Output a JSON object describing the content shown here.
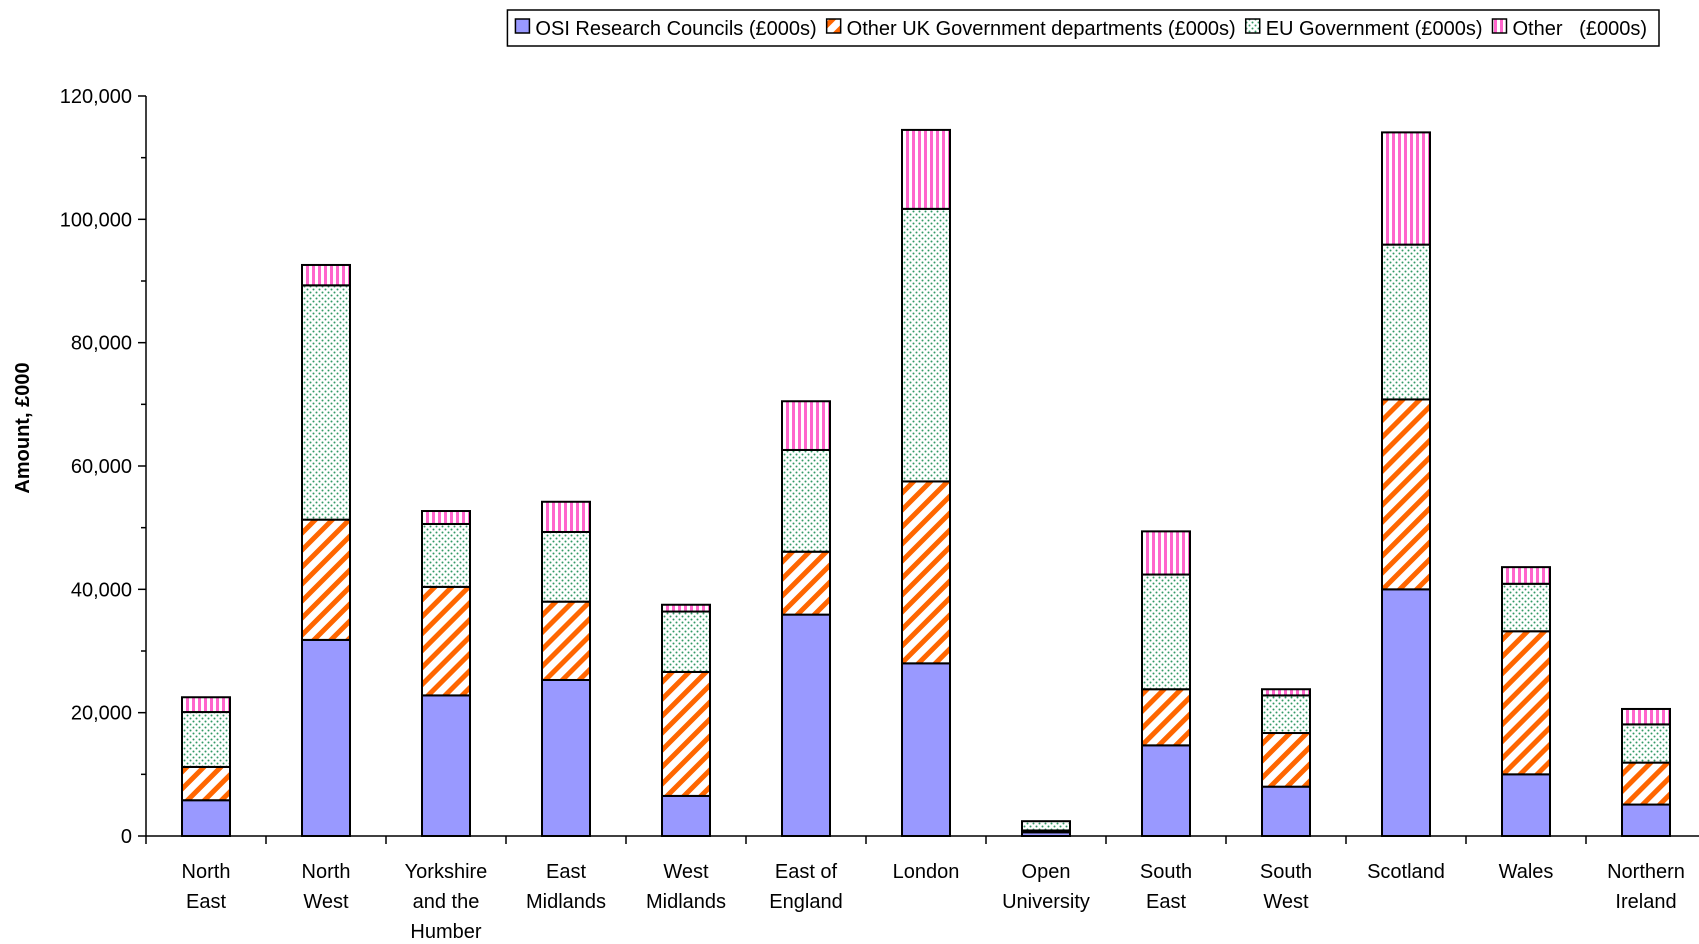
{
  "chart_data": {
    "type": "bar",
    "stacked": true,
    "categories": [
      [
        "North",
        "East"
      ],
      [
        "North",
        "West"
      ],
      [
        "Yorkshire",
        "and the",
        "Humber"
      ],
      [
        "East",
        "Midlands"
      ],
      [
        "West",
        "Midlands"
      ],
      [
        "East of",
        "England"
      ],
      [
        "London"
      ],
      [
        "Open",
        "University"
      ],
      [
        "South",
        "East"
      ],
      [
        "South",
        "West"
      ],
      [
        "Scotland"
      ],
      [
        "Wales"
      ],
      [
        "Northern",
        "Ireland"
      ]
    ],
    "series": [
      {
        "name": "OSI Research Councils (£000s)",
        "color": "#9999ff",
        "pattern": "solid",
        "values": [
          5800,
          31800,
          22800,
          25300,
          6500,
          35900,
          28000,
          600,
          14700,
          8000,
          40000,
          10000,
          5100
        ]
      },
      {
        "name": "Other UK Government departments (£000s)",
        "color": "#ff6600",
        "pattern": "diagonal-stripes",
        "values": [
          5400,
          19500,
          17600,
          12700,
          20100,
          10200,
          29500,
          300,
          9100,
          8700,
          30800,
          23200,
          6800
        ]
      },
      {
        "name": "EU Government (£000s)",
        "color": "#339966",
        "pattern": "dots",
        "values": [
          8900,
          38000,
          10200,
          11300,
          9800,
          16500,
          44200,
          1500,
          18600,
          6100,
          25100,
          7700,
          6200
        ]
      },
      {
        "name": "Other   (£000s)",
        "color": "#ff66cc",
        "pattern": "vertical-stripes",
        "values": [
          2400,
          3300,
          2100,
          4900,
          1100,
          7900,
          12800,
          0,
          7000,
          1000,
          18200,
          2700,
          2500
        ]
      }
    ],
    "ylabel": "Amount, £000",
    "ylim": [
      0,
      120000
    ],
    "yticks": [
      0,
      20000,
      40000,
      60000,
      80000,
      100000,
      120000
    ],
    "ytick_labels": [
      "0",
      "20,000",
      "40,000",
      "60,000",
      "80,000",
      "100,000",
      "120,000"
    ],
    "legend_position": "top",
    "grid": false
  }
}
